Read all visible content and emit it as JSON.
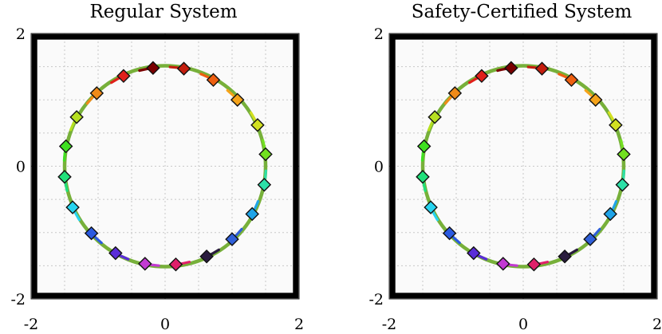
{
  "chart_data": [
    {
      "type": "scatter",
      "title": "Regular System",
      "xlim": [
        -2,
        2
      ],
      "ylim": [
        -2,
        2
      ],
      "xticks": [
        "-2",
        "0",
        "2"
      ],
      "yticks": [
        "2",
        "0",
        "-2"
      ],
      "grid": true,
      "boundary": [
        -1.95,
        1.95
      ],
      "path_radius": 1.5,
      "agents": [
        {
          "x": -0.18,
          "y": 1.48,
          "color": "#7a0000"
        },
        {
          "x": 0.28,
          "y": 1.47,
          "color": "#c41e0e"
        },
        {
          "x": 0.72,
          "y": 1.3,
          "color": "#ee5f10"
        },
        {
          "x": 1.08,
          "y": 1.0,
          "color": "#f5a31a"
        },
        {
          "x": 1.38,
          "y": 0.62,
          "color": "#d2e020"
        },
        {
          "x": 1.5,
          "y": 0.18,
          "color": "#72e020"
        },
        {
          "x": 1.48,
          "y": -0.28,
          "color": "#2de0a8"
        },
        {
          "x": 1.3,
          "y": -0.72,
          "color": "#1fa4e8"
        },
        {
          "x": 1.0,
          "y": -1.1,
          "color": "#2f5fd8"
        },
        {
          "x": 0.62,
          "y": -1.36,
          "color": "#2a1c3e"
        },
        {
          "x": 0.16,
          "y": -1.48,
          "color": "#e0206a"
        },
        {
          "x": -0.3,
          "y": -1.47,
          "color": "#c23ad2"
        },
        {
          "x": -0.74,
          "y": -1.31,
          "color": "#5a2cd8"
        },
        {
          "x": -1.1,
          "y": -1.01,
          "color": "#2a5ae0"
        },
        {
          "x": -1.38,
          "y": -0.62,
          "color": "#27d4f0"
        },
        {
          "x": -1.5,
          "y": -0.16,
          "color": "#20e07a"
        },
        {
          "x": -1.48,
          "y": 0.3,
          "color": "#3ee020"
        },
        {
          "x": -1.32,
          "y": 0.74,
          "color": "#b6e020"
        },
        {
          "x": -1.02,
          "y": 1.1,
          "color": "#f08a18"
        },
        {
          "x": -0.62,
          "y": 1.36,
          "color": "#e0201a"
        }
      ]
    },
    {
      "type": "scatter",
      "title": "Safety-Certified System",
      "xlim": [
        -2,
        2
      ],
      "ylim": [
        -2,
        2
      ],
      "xticks": [
        "-2",
        "0",
        "2"
      ],
      "yticks": [
        "2",
        "0",
        "-2"
      ],
      "grid": true,
      "boundary": [
        -1.95,
        1.95
      ],
      "path_radius": 1.5,
      "agents": [
        {
          "x": -0.18,
          "y": 1.48,
          "color": "#7a0000"
        },
        {
          "x": 0.28,
          "y": 1.47,
          "color": "#c41e0e"
        },
        {
          "x": 0.72,
          "y": 1.3,
          "color": "#ee5f10"
        },
        {
          "x": 1.08,
          "y": 1.0,
          "color": "#f5a31a"
        },
        {
          "x": 1.38,
          "y": 0.62,
          "color": "#d2e020"
        },
        {
          "x": 1.5,
          "y": 0.18,
          "color": "#72e020"
        },
        {
          "x": 1.48,
          "y": -0.28,
          "color": "#2de0a8"
        },
        {
          "x": 1.3,
          "y": -0.72,
          "color": "#1fa4e8"
        },
        {
          "x": 1.0,
          "y": -1.1,
          "color": "#2f5fd8"
        },
        {
          "x": 0.62,
          "y": -1.36,
          "color": "#2a1c3e"
        },
        {
          "x": 0.16,
          "y": -1.48,
          "color": "#e0206a"
        },
        {
          "x": -0.3,
          "y": -1.47,
          "color": "#c23ad2"
        },
        {
          "x": -0.74,
          "y": -1.31,
          "color": "#5a2cd8"
        },
        {
          "x": -1.1,
          "y": -1.01,
          "color": "#2a5ae0"
        },
        {
          "x": -1.38,
          "y": -0.62,
          "color": "#27d4f0"
        },
        {
          "x": -1.5,
          "y": -0.16,
          "color": "#20e07a"
        },
        {
          "x": -1.48,
          "y": 0.3,
          "color": "#3ee020"
        },
        {
          "x": -1.32,
          "y": 0.74,
          "color": "#b6e020"
        },
        {
          "x": -1.02,
          "y": 1.1,
          "color": "#f08a18"
        },
        {
          "x": -0.62,
          "y": 1.36,
          "color": "#e0201a"
        }
      ]
    }
  ]
}
